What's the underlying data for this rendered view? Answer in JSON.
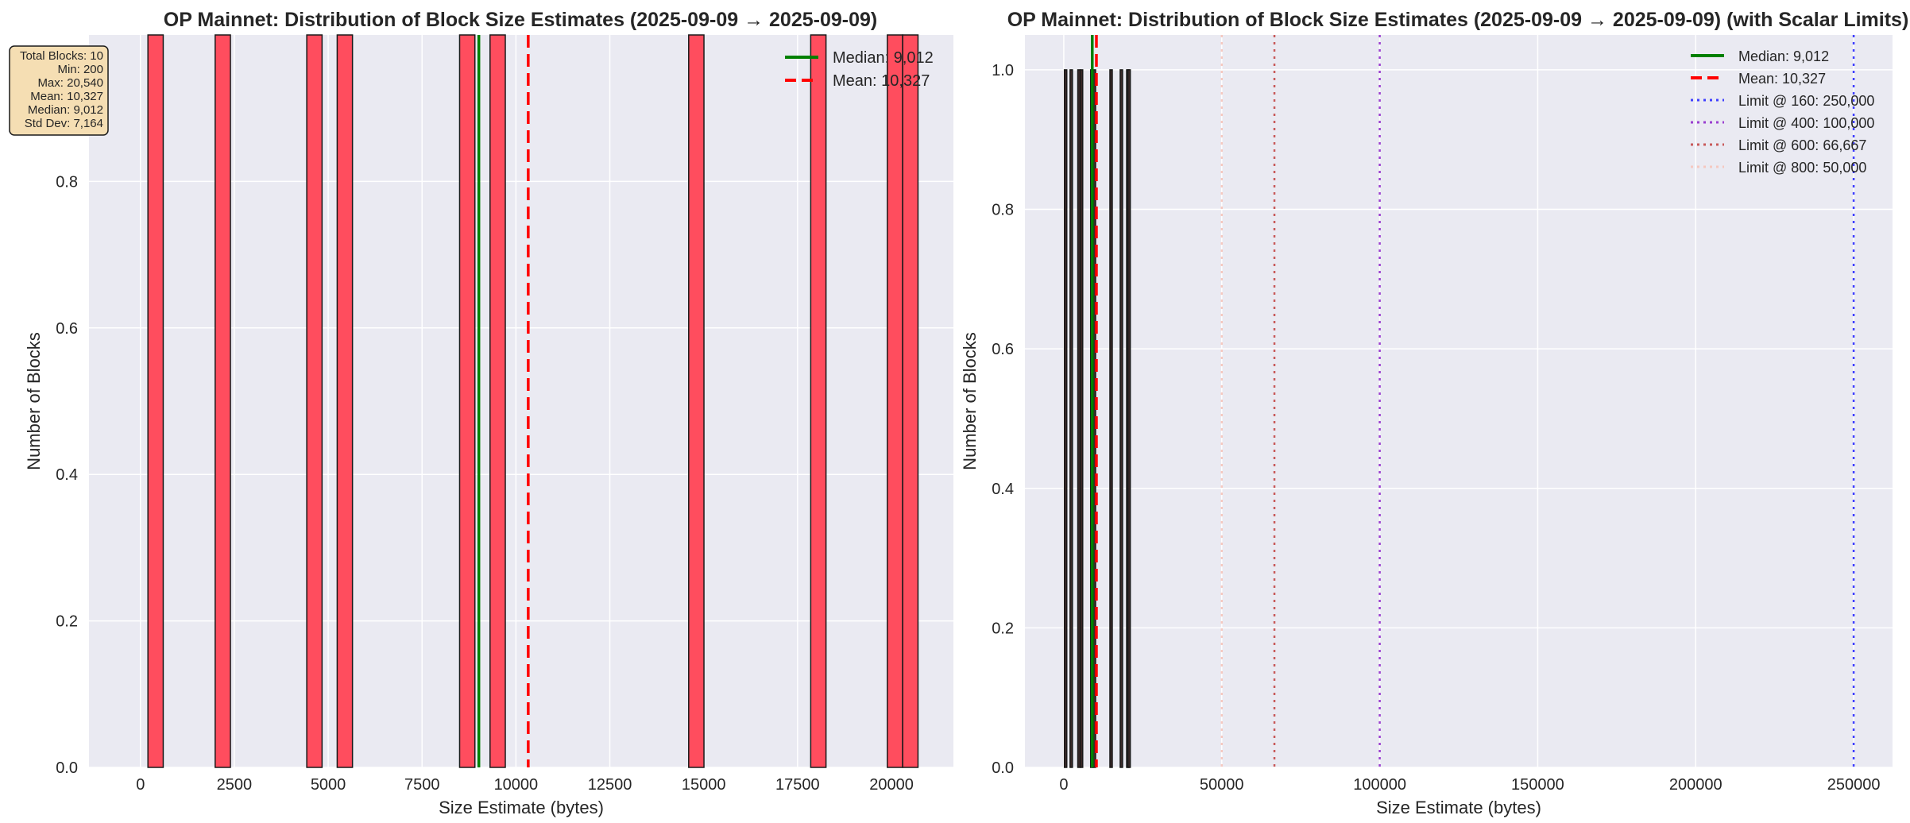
{
  "chart_data": [
    {
      "type": "bar",
      "title": "OP Mainnet: Distribution of Block Size Estimates (2025-09-09 → 2025-09-09)",
      "xlabel": "Size Estimate (bytes)",
      "ylabel": "Number of Blocks",
      "xlim": [
        -1370,
        21650
      ],
      "ylim": [
        0,
        1.0
      ],
      "xticks": [
        "0",
        "2500",
        "5000",
        "7500",
        "10000",
        "12500",
        "15000",
        "17500",
        "20000"
      ],
      "xtick_values": [
        0,
        2500,
        5000,
        7500,
        10000,
        12500,
        15000,
        17500,
        20000
      ],
      "yticks": [
        "0.0",
        "0.2",
        "0.4",
        "0.6",
        "0.8"
      ],
      "ytick_values": [
        0.0,
        0.2,
        0.4,
        0.6,
        0.8
      ],
      "grid": true,
      "bar_color": "#ff4d5e",
      "bar_edge_color": "#1a1a1a",
      "bin_width": 407,
      "bins": [
        {
          "x": 200,
          "count": 1
        },
        {
          "x": 1990,
          "count": 1
        },
        {
          "x": 4430,
          "count": 1
        },
        {
          "x": 5240,
          "count": 1
        },
        {
          "x": 8500,
          "count": 1
        },
        {
          "x": 9310,
          "count": 1
        },
        {
          "x": 14600,
          "count": 1
        },
        {
          "x": 17850,
          "count": 1
        },
        {
          "x": 19890,
          "count": 1
        },
        {
          "x": 20300,
          "count": 1
        }
      ],
      "vlines": [
        {
          "name": "Median: 9,012",
          "x": 9012,
          "color": "#008000",
          "style": "solid"
        },
        {
          "name": "Mean: 10,327",
          "x": 10327,
          "color": "#ff0000",
          "style": "dashed"
        }
      ],
      "legend": "top-right",
      "stats_box": {
        "lines": [
          "Total Blocks: 10",
          "Min: 200",
          "Max: 20,540",
          "Mean: 10,327",
          "Median: 9,012",
          "Std Dev: 7,164"
        ],
        "position": "top-left",
        "fill": "#f5deb3"
      }
    },
    {
      "type": "bar",
      "title": "OP Mainnet: Distribution of Block Size Estimates (2025-09-09 → 2025-09-09) (with Scalar Limits)",
      "xlabel": "Size Estimate (bytes)",
      "ylabel": "Number of Blocks",
      "xlim": [
        -12300,
        262300
      ],
      "ylim": [
        0,
        1.05
      ],
      "xticks": [
        "0",
        "50000",
        "100000",
        "150000",
        "200000",
        "250000"
      ],
      "xtick_values": [
        0,
        50000,
        100000,
        150000,
        200000,
        250000
      ],
      "yticks": [
        "0.0",
        "0.2",
        "0.4",
        "0.6",
        "0.8",
        "1.0"
      ],
      "ytick_values": [
        0.0,
        0.2,
        0.4,
        0.6,
        0.8,
        1.0
      ],
      "grid": true,
      "bar_color": "#3d2a2a",
      "bar_edge_color": "#1a1a1a",
      "bin_width": 407,
      "bins": [
        {
          "x": 200,
          "count": 1
        },
        {
          "x": 1990,
          "count": 1
        },
        {
          "x": 4430,
          "count": 1
        },
        {
          "x": 5240,
          "count": 1
        },
        {
          "x": 8500,
          "count": 1
        },
        {
          "x": 9310,
          "count": 1
        },
        {
          "x": 14600,
          "count": 1
        },
        {
          "x": 17850,
          "count": 1
        },
        {
          "x": 19890,
          "count": 1
        },
        {
          "x": 20300,
          "count": 1
        }
      ],
      "vlines": [
        {
          "name": "Median: 9,012",
          "x": 9012,
          "color": "#008000",
          "style": "solid"
        },
        {
          "name": "Mean: 10,327",
          "x": 10327,
          "color": "#ff0000",
          "style": "dashed"
        },
        {
          "name": "Limit @ 160: 250,000",
          "x": 250000,
          "color": "#4040ff",
          "style": "dotted"
        },
        {
          "name": "Limit @ 400: 100,000",
          "x": 100000,
          "color": "#9b40d0",
          "style": "dotted"
        },
        {
          "name": "Limit @ 600: 66,667",
          "x": 66667,
          "color": "#c85a5a",
          "style": "dotted"
        },
        {
          "name": "Limit @ 800: 50,000",
          "x": 50000,
          "color": "#f5c8c0",
          "style": "dotted"
        }
      ],
      "legend": "top-right"
    }
  ]
}
